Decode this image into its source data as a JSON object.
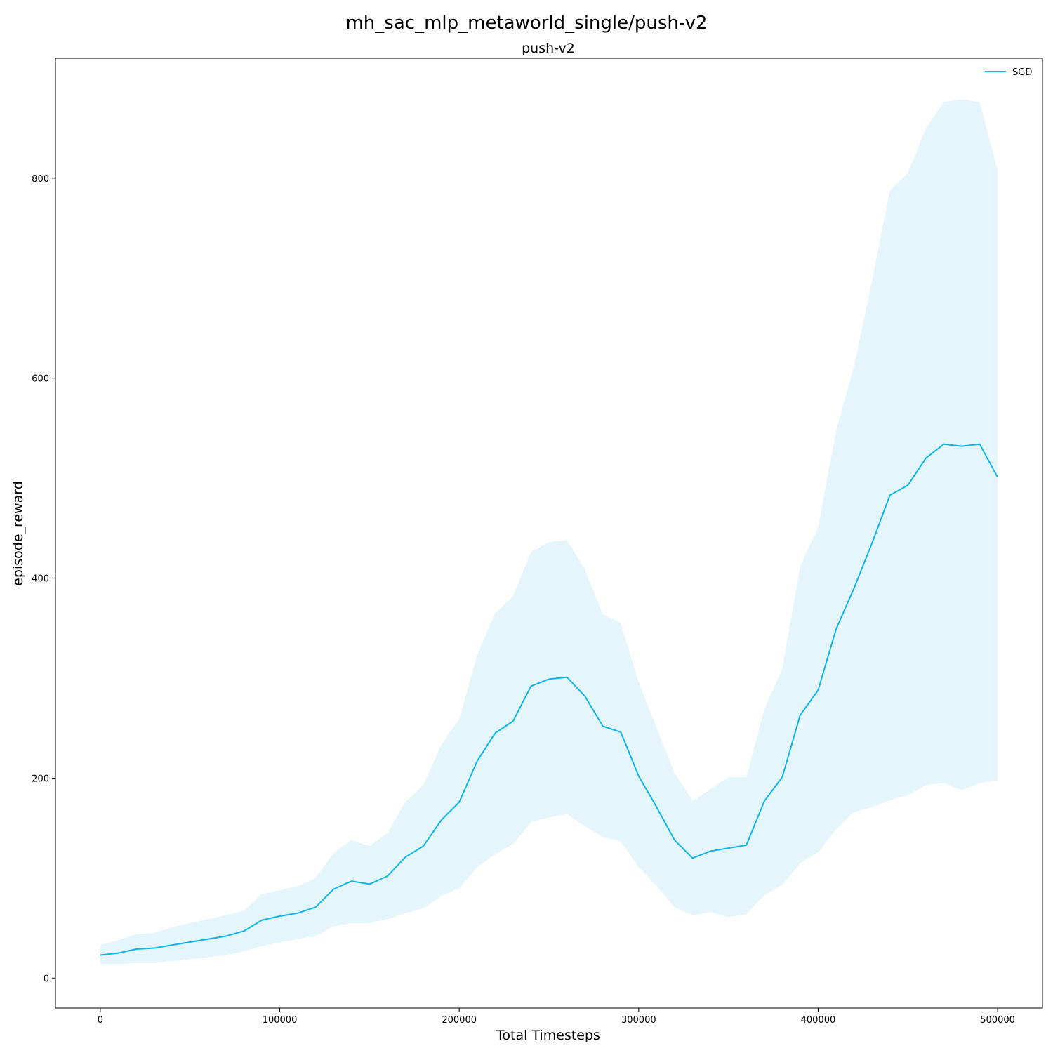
{
  "figure_title": "mh_sac_mlp_metaworld_single/push-v2",
  "chart_data": {
    "type": "line",
    "title": "push-v2",
    "xlabel": "Total Timesteps",
    "ylabel": "episode_reward",
    "xlim": [
      -25000,
      525000
    ],
    "ylim": [
      -30,
      920
    ],
    "xticks": [
      0,
      100000,
      200000,
      300000,
      400000,
      500000
    ],
    "xtick_labels": [
      "0",
      "100000",
      "200000",
      "300000",
      "400000",
      "500000"
    ],
    "yticks": [
      0,
      200,
      400,
      600,
      800
    ],
    "ytick_labels": [
      "0",
      "200",
      "400",
      "600",
      "800"
    ],
    "grid": false,
    "legend_position": "top-right",
    "x": [
      0,
      10000,
      20000,
      30000,
      40000,
      50000,
      60000,
      70000,
      80000,
      90000,
      100000,
      110000,
      120000,
      130000,
      140000,
      150000,
      160000,
      170000,
      180000,
      190000,
      200000,
      210000,
      220000,
      230000,
      240000,
      250000,
      260000,
      270000,
      280000,
      290000,
      300000,
      310000,
      320000,
      330000,
      340000,
      350000,
      360000,
      370000,
      380000,
      390000,
      400000,
      410000,
      420000,
      430000,
      440000,
      450000,
      460000,
      470000,
      480000,
      490000,
      500000
    ],
    "series": [
      {
        "name": "SGD",
        "color": "#0fb5e8",
        "band_color": "#e4f5fb",
        "values": [
          23,
          25,
          29,
          30,
          33,
          36,
          39,
          42,
          47,
          58,
          62,
          65,
          71,
          89,
          97,
          94,
          102,
          121,
          132,
          158,
          176,
          217,
          245,
          257,
          292,
          299,
          301,
          282,
          252,
          246,
          202,
          171,
          138,
          120,
          127,
          130,
          133,
          177,
          201,
          263,
          288,
          349,
          390,
          435,
          483,
          493,
          520,
          534,
          532,
          534,
          501
        ],
        "upper": [
          33,
          38,
          44,
          45,
          51,
          55,
          59,
          63,
          67,
          84,
          88,
          92,
          100,
          125,
          138,
          132,
          145,
          176,
          193,
          233,
          259,
          323,
          365,
          382,
          426,
          436,
          438,
          409,
          364,
          355,
          296,
          250,
          205,
          177,
          189,
          201,
          201,
          269,
          309,
          412,
          451,
          547,
          612,
          697,
          788,
          805,
          850,
          876,
          879,
          876,
          808
        ],
        "lower": [
          14,
          14,
          15,
          15,
          17,
          19,
          21,
          23,
          27,
          32,
          36,
          39,
          42,
          52,
          55,
          55,
          59,
          65,
          70,
          82,
          90,
          111,
          124,
          134,
          156,
          161,
          164,
          152,
          141,
          137,
          111,
          92,
          71,
          63,
          66,
          61,
          64,
          83,
          93,
          115,
          126,
          149,
          166,
          171,
          178,
          183,
          193,
          195,
          188,
          195,
          198
        ]
      }
    ]
  }
}
